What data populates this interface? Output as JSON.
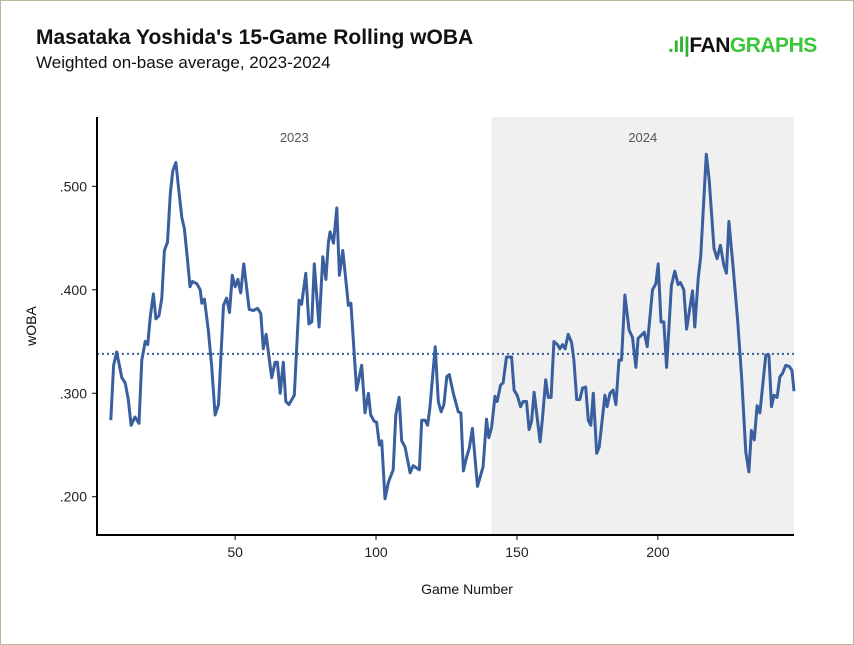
{
  "chart_data": {
    "type": "line",
    "title": "Masataka Yoshida's 15-Game Rolling wOBA",
    "subtitle": "Weighted on-base average, 2023-2024",
    "xlabel": "Game Number",
    "ylabel": "wOBA",
    "xlim": [
      1,
      248.3
    ],
    "ylim": [
      0.163,
      0.567
    ],
    "x_ticks": [
      50,
      100,
      150,
      200
    ],
    "y_ticks": [
      0.2,
      0.3,
      0.4,
      0.5
    ],
    "y_tick_labels": [
      ".200",
      ".300",
      ".400",
      ".500"
    ],
    "grid": false,
    "reference_line": {
      "value": 0.338,
      "style": "dotted"
    },
    "regions": [
      {
        "label": "2023",
        "start": 1,
        "end": 141,
        "color": "#ffffff"
      },
      {
        "label": "2024",
        "start": 141,
        "end": 248.3,
        "color": "#f0f0f0"
      }
    ],
    "line_color": "#3a5f9e",
    "series": [
      {
        "points": [
          [
            5.9,
            0.274
          ],
          [
            6.9,
            0.327
          ],
          [
            8.0,
            0.34
          ],
          [
            9.8,
            0.315
          ],
          [
            11,
            0.31
          ],
          [
            12.1,
            0.294
          ],
          [
            13.1,
            0.269
          ],
          [
            14.5,
            0.277
          ],
          [
            15.9,
            0.271
          ],
          [
            16.9,
            0.332
          ],
          [
            18.1,
            0.35
          ],
          [
            19,
            0.347
          ],
          [
            19.9,
            0.374
          ],
          [
            21,
            0.396
          ],
          [
            21.9,
            0.372
          ],
          [
            23,
            0.375
          ],
          [
            24,
            0.392
          ],
          [
            24.9,
            0.438
          ],
          [
            26,
            0.446
          ],
          [
            27,
            0.493
          ],
          [
            27.9,
            0.515
          ],
          [
            29,
            0.523
          ],
          [
            29.9,
            0.499
          ],
          [
            31.1,
            0.47
          ],
          [
            32,
            0.459
          ],
          [
            33.2,
            0.426
          ],
          [
            34,
            0.403
          ],
          [
            34.9,
            0.408
          ],
          [
            36.4,
            0.406
          ],
          [
            37.6,
            0.4
          ],
          [
            38.2,
            0.387
          ],
          [
            39.1,
            0.391
          ],
          [
            40.5,
            0.361
          ],
          [
            41.7,
            0.326
          ],
          [
            42.9,
            0.279
          ],
          [
            44.1,
            0.289
          ],
          [
            45.9,
            0.385
          ],
          [
            47,
            0.392
          ],
          [
            48,
            0.378
          ],
          [
            49,
            0.414
          ],
          [
            50,
            0.403
          ],
          [
            51,
            0.41
          ],
          [
            52,
            0.397
          ],
          [
            53.1,
            0.425
          ],
          [
            55,
            0.381
          ],
          [
            56.5,
            0.38
          ],
          [
            58,
            0.382
          ],
          [
            59.1,
            0.377
          ],
          [
            60,
            0.343
          ],
          [
            61,
            0.357
          ],
          [
            63,
            0.315
          ],
          [
            64.2,
            0.33
          ],
          [
            65,
            0.33
          ],
          [
            66,
            0.3
          ],
          [
            67.1,
            0.33
          ],
          [
            68,
            0.292
          ],
          [
            69.1,
            0.289
          ],
          [
            71,
            0.298
          ],
          [
            72.7,
            0.39
          ],
          [
            73.6,
            0.386
          ],
          [
            75.1,
            0.416
          ],
          [
            76.2,
            0.367
          ],
          [
            77.2,
            0.369
          ],
          [
            78.1,
            0.425
          ],
          [
            79.8,
            0.364
          ],
          [
            81.1,
            0.432
          ],
          [
            82.2,
            0.41
          ],
          [
            83.1,
            0.446
          ],
          [
            83.7,
            0.456
          ],
          [
            84.9,
            0.445
          ],
          [
            86.1,
            0.479
          ],
          [
            87,
            0.414
          ],
          [
            88.2,
            0.438
          ],
          [
            90.2,
            0.385
          ],
          [
            91.1,
            0.387
          ],
          [
            93.1,
            0.303
          ],
          [
            94.9,
            0.327
          ],
          [
            96.1,
            0.281
          ],
          [
            97.3,
            0.3
          ],
          [
            98.1,
            0.279
          ],
          [
            99.3,
            0.273
          ],
          [
            100.2,
            0.272
          ],
          [
            101.2,
            0.25
          ],
          [
            102,
            0.254
          ],
          [
            103.2,
            0.198
          ],
          [
            104.4,
            0.214
          ],
          [
            106.1,
            0.226
          ],
          [
            107,
            0.279
          ],
          [
            108.2,
            0.296
          ],
          [
            109.1,
            0.254
          ],
          [
            110.3,
            0.248
          ],
          [
            112.1,
            0.223
          ],
          [
            113.2,
            0.23
          ],
          [
            115.4,
            0.226
          ],
          [
            116.2,
            0.274
          ],
          [
            117.4,
            0.274
          ],
          [
            118.3,
            0.269
          ],
          [
            119.1,
            0.286
          ],
          [
            121,
            0.345
          ],
          [
            122.1,
            0.292
          ],
          [
            123.1,
            0.282
          ],
          [
            124.1,
            0.289
          ],
          [
            125.1,
            0.316
          ],
          [
            126,
            0.318
          ],
          [
            127.4,
            0.3
          ],
          [
            129.2,
            0.282
          ],
          [
            130.1,
            0.281
          ],
          [
            131,
            0.225
          ],
          [
            132.2,
            0.239
          ],
          [
            133.1,
            0.247
          ],
          [
            134.2,
            0.266
          ],
          [
            136,
            0.21
          ],
          [
            138,
            0.229
          ],
          [
            139.2,
            0.275
          ],
          [
            140,
            0.257
          ],
          [
            141,
            0.267
          ],
          [
            142.2,
            0.297
          ],
          [
            143,
            0.292
          ],
          [
            144.2,
            0.308
          ],
          [
            145.1,
            0.31
          ],
          [
            146.3,
            0.335
          ],
          [
            148.1,
            0.335
          ],
          [
            149,
            0.303
          ],
          [
            150.1,
            0.298
          ],
          [
            151.3,
            0.287
          ],
          [
            152.2,
            0.292
          ],
          [
            153.4,
            0.292
          ],
          [
            154.3,
            0.265
          ],
          [
            155.2,
            0.273
          ],
          [
            156.1,
            0.301
          ],
          [
            158.2,
            0.253
          ],
          [
            159.1,
            0.277
          ],
          [
            160.2,
            0.313
          ],
          [
            161.1,
            0.296
          ],
          [
            162.1,
            0.296
          ],
          [
            163.1,
            0.35
          ],
          [
            164.4,
            0.347
          ],
          [
            165.2,
            0.343
          ],
          [
            166.2,
            0.347
          ],
          [
            167.1,
            0.343
          ],
          [
            168.2,
            0.357
          ],
          [
            169.4,
            0.349
          ],
          [
            170.2,
            0.332
          ],
          [
            171.2,
            0.294
          ],
          [
            172.3,
            0.294
          ],
          [
            173.3,
            0.305
          ],
          [
            174.4,
            0.306
          ],
          [
            175.3,
            0.274
          ],
          [
            176.2,
            0.269
          ],
          [
            177.1,
            0.3
          ],
          [
            178.3,
            0.242
          ],
          [
            179.2,
            0.248
          ],
          [
            181.2,
            0.298
          ],
          [
            182,
            0.287
          ],
          [
            183,
            0.3
          ],
          [
            184.1,
            0.303
          ],
          [
            185.1,
            0.289
          ],
          [
            186.2,
            0.332
          ],
          [
            187.1,
            0.332
          ],
          [
            188.3,
            0.395
          ],
          [
            189.8,
            0.361
          ],
          [
            191,
            0.354
          ],
          [
            192.2,
            0.325
          ],
          [
            193,
            0.353
          ],
          [
            195.2,
            0.359
          ],
          [
            196.2,
            0.345
          ],
          [
            198.1,
            0.4
          ],
          [
            199.3,
            0.406
          ],
          [
            200.1,
            0.425
          ],
          [
            201.1,
            0.369
          ],
          [
            202.1,
            0.369
          ],
          [
            203.1,
            0.325
          ],
          [
            204.8,
            0.404
          ],
          [
            206,
            0.418
          ],
          [
            207.2,
            0.405
          ],
          [
            208,
            0.407
          ],
          [
            209.2,
            0.4
          ],
          [
            210.2,
            0.362
          ],
          [
            212.3,
            0.399
          ],
          [
            213.1,
            0.364
          ],
          [
            214.3,
            0.411
          ],
          [
            215.2,
            0.432
          ],
          [
            217.2,
            0.531
          ],
          [
            218.2,
            0.506
          ],
          [
            219.9,
            0.44
          ],
          [
            221,
            0.43
          ],
          [
            222.2,
            0.443
          ],
          [
            223.4,
            0.424
          ],
          [
            224.3,
            0.416
          ],
          [
            225.2,
            0.466
          ],
          [
            226.7,
            0.422
          ],
          [
            228.3,
            0.371
          ],
          [
            229.7,
            0.316
          ],
          [
            231.2,
            0.243
          ],
          [
            232.3,
            0.224
          ],
          [
            233.2,
            0.264
          ],
          [
            234.2,
            0.255
          ],
          [
            235.2,
            0.288
          ],
          [
            236.2,
            0.281
          ],
          [
            238.3,
            0.337
          ],
          [
            239.4,
            0.337
          ],
          [
            240.3,
            0.287
          ],
          [
            241.2,
            0.298
          ],
          [
            242.3,
            0.296
          ],
          [
            243.3,
            0.316
          ],
          [
            244.2,
            0.319
          ],
          [
            245.4,
            0.327
          ],
          [
            246.6,
            0.326
          ],
          [
            247.6,
            0.322
          ],
          [
            248.3,
            0.302
          ]
        ]
      }
    ]
  },
  "logo": {
    "mark": ".ıl|",
    "fan": "FAN",
    "graphs": "GRAPHS"
  }
}
